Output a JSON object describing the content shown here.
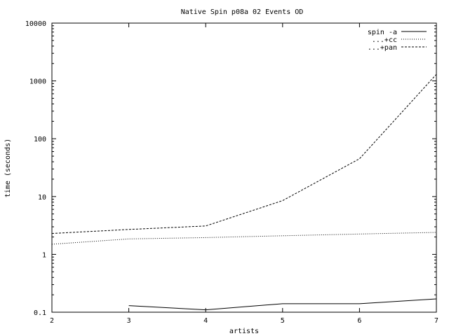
{
  "chart_data": {
    "type": "line",
    "title": "Native Spin p08a 02 Events OD",
    "xlabel": "artists",
    "ylabel": "time (seconds)",
    "xlim": [
      2,
      7
    ],
    "ylim": [
      0.1,
      10000
    ],
    "yscale": "log",
    "grid": false,
    "legend_position": "top-right",
    "x_ticks": [
      2,
      3,
      4,
      5,
      6,
      7
    ],
    "x_tick_labels": [
      "2",
      "3",
      "4",
      "5",
      "6",
      "7"
    ],
    "y_ticks": [
      0.1,
      1,
      10,
      100,
      1000,
      10000
    ],
    "y_tick_labels": [
      "0.1",
      "1",
      "10",
      "100",
      "1000",
      "10000"
    ],
    "series": [
      {
        "name": "spin -a",
        "style": "solid",
        "x": [
          3,
          4,
          5,
          6,
          7
        ],
        "y": [
          0.13,
          0.11,
          0.14,
          0.14,
          0.17
        ]
      },
      {
        "name": "...+cc",
        "style": "dotted",
        "x": [
          2,
          3,
          4,
          5,
          6,
          7
        ],
        "y": [
          1.5,
          1.85,
          1.95,
          2.1,
          2.25,
          2.4
        ]
      },
      {
        "name": "...+pan",
        "style": "dashed",
        "x": [
          2,
          3,
          4,
          5,
          6,
          7
        ],
        "y": [
          2.3,
          2.7,
          3.1,
          8.5,
          45,
          1300
        ]
      }
    ]
  }
}
